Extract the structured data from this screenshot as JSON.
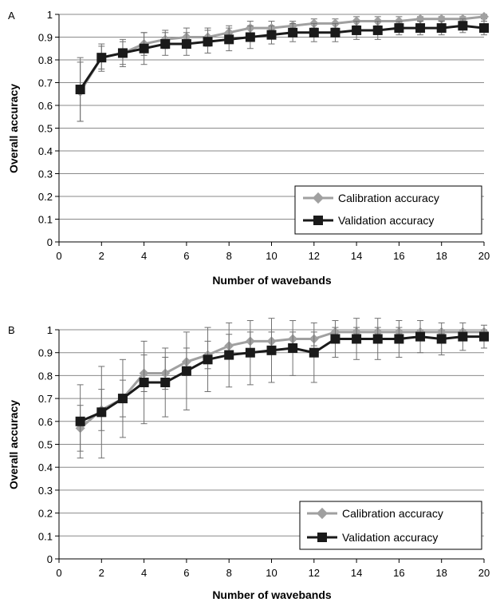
{
  "colors": {
    "calibration": "#a0a0a0",
    "validation": "#1a1a1a",
    "grid": "#8a8a8a",
    "errorbar": "#707070"
  },
  "chart_data": [
    {
      "panel": "A",
      "type": "line",
      "xlabel": "Number of wavebands",
      "ylabel": "Overall accuracy",
      "xlim": [
        0,
        20
      ],
      "ylim": [
        0,
        1
      ],
      "xticks": [
        0,
        2,
        4,
        6,
        8,
        10,
        12,
        14,
        16,
        18,
        20
      ],
      "yticks": [
        0,
        0.1,
        0.2,
        0.3,
        0.4,
        0.5,
        0.6,
        0.7,
        0.8,
        0.9,
        1
      ],
      "grid": "horizontal",
      "legend_position": "bottom-right",
      "series": [
        {
          "name": "Calibration accuracy",
          "marker": "diamond",
          "x": [
            1,
            2,
            3,
            4,
            5,
            6,
            7,
            8,
            9,
            10,
            11,
            12,
            13,
            14,
            15,
            16,
            17,
            18,
            19,
            20
          ],
          "y": [
            0.66,
            0.81,
            0.83,
            0.87,
            0.89,
            0.9,
            0.9,
            0.92,
            0.94,
            0.94,
            0.95,
            0.96,
            0.96,
            0.97,
            0.97,
            0.97,
            0.98,
            0.98,
            0.98,
            0.99
          ],
          "err": [
            0.13,
            0.05,
            0.05,
            0.05,
            0.04,
            0.04,
            0.04,
            0.03,
            0.03,
            0.03,
            0.02,
            0.02,
            0.02,
            0.02,
            0.02,
            0.02,
            0.01,
            0.01,
            0.01,
            0.01
          ]
        },
        {
          "name": "Validation accuracy",
          "marker": "square",
          "x": [
            1,
            2,
            3,
            4,
            5,
            6,
            7,
            8,
            9,
            10,
            11,
            12,
            13,
            14,
            15,
            16,
            17,
            18,
            19,
            20
          ],
          "y": [
            0.67,
            0.81,
            0.83,
            0.85,
            0.87,
            0.87,
            0.88,
            0.89,
            0.9,
            0.91,
            0.92,
            0.92,
            0.92,
            0.93,
            0.93,
            0.94,
            0.94,
            0.94,
            0.95,
            0.94
          ],
          "err": [
            0.14,
            0.06,
            0.06,
            0.07,
            0.05,
            0.05,
            0.05,
            0.05,
            0.05,
            0.04,
            0.04,
            0.04,
            0.04,
            0.04,
            0.04,
            0.03,
            0.03,
            0.03,
            0.03,
            0.03
          ]
        }
      ]
    },
    {
      "panel": "B",
      "type": "line",
      "xlabel": "Number of wavebands",
      "ylabel": "Overall accuracy",
      "xlim": [
        0,
        20
      ],
      "ylim": [
        0,
        1
      ],
      "xticks": [
        0,
        2,
        4,
        6,
        8,
        10,
        12,
        14,
        16,
        18,
        20
      ],
      "yticks": [
        0,
        0.1,
        0.2,
        0.3,
        0.4,
        0.5,
        0.6,
        0.7,
        0.8,
        0.9,
        1
      ],
      "grid": "horizontal",
      "legend_position": "bottom-right",
      "series": [
        {
          "name": "Calibration accuracy",
          "marker": "diamond",
          "x": [
            1,
            2,
            3,
            4,
            5,
            6,
            7,
            8,
            9,
            10,
            11,
            12,
            13,
            14,
            15,
            16,
            17,
            18,
            19,
            20
          ],
          "y": [
            0.57,
            0.65,
            0.7,
            0.81,
            0.81,
            0.86,
            0.89,
            0.93,
            0.95,
            0.95,
            0.96,
            0.96,
            0.99,
            0.99,
            0.99,
            0.99,
            0.99,
            0.99,
            0.99,
            0.99
          ],
          "err": [
            0.1,
            0.09,
            0.08,
            0.08,
            0.07,
            0.06,
            0.06,
            0.05,
            0.04,
            0.04,
            0.03,
            0.03,
            0.02,
            0.02,
            0.02,
            0.02,
            0.01,
            0.01,
            0.01,
            0.01
          ]
        },
        {
          "name": "Validation accuracy",
          "marker": "square",
          "x": [
            1,
            2,
            3,
            4,
            5,
            6,
            7,
            8,
            9,
            10,
            11,
            12,
            13,
            14,
            15,
            16,
            17,
            18,
            19,
            20
          ],
          "y": [
            0.6,
            0.64,
            0.7,
            0.77,
            0.77,
            0.82,
            0.87,
            0.89,
            0.9,
            0.91,
            0.92,
            0.9,
            0.96,
            0.96,
            0.96,
            0.96,
            0.97,
            0.96,
            0.97,
            0.97
          ],
          "err": [
            0.16,
            0.2,
            0.17,
            0.18,
            0.15,
            0.17,
            0.14,
            0.14,
            0.14,
            0.14,
            0.12,
            0.13,
            0.08,
            0.09,
            0.09,
            0.08,
            0.07,
            0.07,
            0.06,
            0.05
          ]
        }
      ]
    }
  ]
}
